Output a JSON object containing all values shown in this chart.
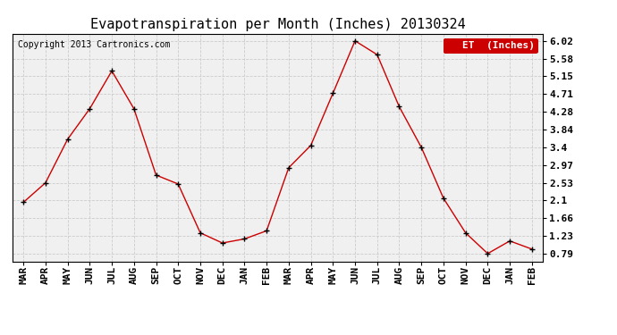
{
  "title": "Evapotranspiration per Month (Inches) 20130324",
  "copyright": "Copyright 2013 Cartronics.com",
  "legend_label": "ET  (Inches)",
  "x_labels": [
    "MAR",
    "APR",
    "MAY",
    "JUN",
    "JUL",
    "AUG",
    "SEP",
    "OCT",
    "NOV",
    "DEC",
    "JAN",
    "FEB",
    "MAR",
    "APR",
    "MAY",
    "JUN",
    "JUL",
    "AUG",
    "SEP",
    "OCT",
    "NOV",
    "DEC",
    "JAN",
    "FEB"
  ],
  "y_values": [
    2.05,
    2.53,
    3.6,
    4.35,
    5.28,
    4.35,
    2.72,
    2.5,
    1.3,
    1.05,
    1.15,
    1.35,
    2.9,
    3.45,
    4.73,
    6.02,
    5.68,
    4.4,
    3.4,
    2.15,
    1.3,
    0.79,
    1.1,
    0.9
  ],
  "y_ticks": [
    0.79,
    1.23,
    1.66,
    2.1,
    2.53,
    2.97,
    3.4,
    3.84,
    4.28,
    4.71,
    5.15,
    5.58,
    6.02
  ],
  "ylim": [
    0.6,
    6.2
  ],
  "line_color": "#cc0000",
  "marker_color": "#000000",
  "bg_color": "#ffffff",
  "plot_bg": "#f0f0f0",
  "grid_color": "#cccccc",
  "grid_style": "--",
  "title_fontsize": 11,
  "copyright_fontsize": 7,
  "tick_fontsize": 8,
  "legend_fontsize": 8
}
